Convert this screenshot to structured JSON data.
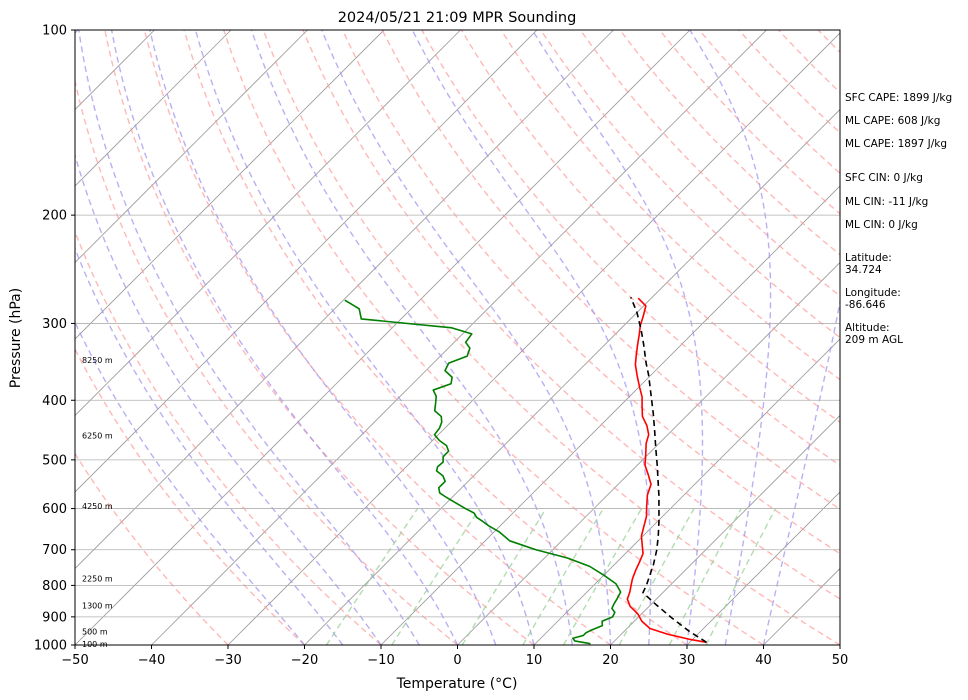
{
  "chart_data": {
    "type": "line",
    "title": "2024/05/21 21:09 MPR Sounding",
    "xlabel": "Temperature (°C)",
    "ylabel": "Pressure (hPa)",
    "xlim": [
      -50,
      50
    ],
    "ylim": [
      1000,
      100
    ],
    "y_scale": "log",
    "x_ticks": [
      -50,
      -40,
      -30,
      -20,
      -10,
      0,
      10,
      20,
      30,
      40,
      50
    ],
    "x_tick_labels": [
      "−50",
      "−40",
      "−30",
      "−20",
      "−10",
      "0",
      "10",
      "20",
      "30",
      "40",
      "50"
    ],
    "y_ticks": [
      100,
      200,
      300,
      400,
      500,
      600,
      700,
      800,
      900,
      1000
    ],
    "y_tick_labels": [
      "100",
      "200",
      "300",
      "400",
      "500",
      "600",
      "700",
      "800",
      "900",
      "1000"
    ],
    "grid": true,
    "skew": "isotherms slanted (skew-T log-P)",
    "background_lines": {
      "dry_adiabats_color": "#ff9a9a",
      "moist_adiabats_color": "#9b8ff0",
      "mixing_ratio_color": "#8fcf8f",
      "isotherm_color": "#999999"
    },
    "series": [
      {
        "color": "#ff0000",
        "points": [
          [
            32.2,
            990
          ],
          [
            29.8,
            980
          ],
          [
            26.0,
            960
          ],
          [
            23.0,
            940
          ],
          [
            21.0,
            915
          ],
          [
            19.5,
            890
          ],
          [
            17.5,
            865
          ],
          [
            16.2,
            842
          ],
          [
            15.6,
            820
          ],
          [
            14.9,
            800
          ],
          [
            14.2,
            780
          ],
          [
            13.5,
            755
          ],
          [
            13.0,
            735
          ],
          [
            12.3,
            710
          ],
          [
            11.2,
            690
          ],
          [
            9.8,
            665
          ],
          [
            8.8,
            640
          ],
          [
            7.9,
            618
          ],
          [
            6.6,
            595
          ],
          [
            5.2,
            570
          ],
          [
            4.3,
            548
          ],
          [
            2.8,
            530
          ],
          [
            1.0,
            510
          ],
          [
            -0.3,
            490
          ],
          [
            -1.7,
            470
          ],
          [
            -2.5,
            455
          ],
          [
            -3.9,
            440
          ],
          [
            -5.7,
            425
          ],
          [
            -7.0,
            410
          ],
          [
            -8.3,
            395
          ],
          [
            -10.0,
            380
          ],
          [
            -11.7,
            365
          ],
          [
            -13.4,
            350
          ],
          [
            -14.6,
            337
          ],
          [
            -15.7,
            325
          ],
          [
            -16.8,
            313
          ],
          [
            -17.9,
            302
          ],
          [
            -18.7,
            292
          ],
          [
            -19.7,
            281
          ],
          [
            -21.7,
            273
          ]
        ]
      },
      {
        "color": "#007f00",
        "points": [
          [
            17.2,
            995
          ],
          [
            16.0,
            990
          ],
          [
            14.8,
            985
          ],
          [
            14.2,
            975
          ],
          [
            15.2,
            965
          ],
          [
            15.2,
            955
          ],
          [
            15.6,
            945
          ],
          [
            16.4,
            930
          ],
          [
            15.8,
            915
          ],
          [
            16.6,
            900
          ],
          [
            16.3,
            885
          ],
          [
            15.4,
            872
          ],
          [
            15.1,
            858
          ],
          [
            14.8,
            840
          ],
          [
            14.4,
            820
          ],
          [
            12.7,
            795
          ],
          [
            10.0,
            770
          ],
          [
            7.0,
            745
          ],
          [
            3.0,
            722
          ],
          [
            -2.2,
            700
          ],
          [
            -6.8,
            677
          ],
          [
            -9.3,
            655
          ],
          [
            -11.5,
            640
          ],
          [
            -12.8,
            630
          ],
          [
            -14.2,
            620
          ],
          [
            -15.1,
            610
          ],
          [
            -16.8,
            600
          ],
          [
            -18.7,
            588
          ],
          [
            -20.5,
            577
          ],
          [
            -22.2,
            566
          ],
          [
            -23.0,
            555
          ],
          [
            -23.0,
            542
          ],
          [
            -24.0,
            531
          ],
          [
            -25.5,
            521
          ],
          [
            -25.9,
            513
          ],
          [
            -25.8,
            504
          ],
          [
            -26.5,
            494
          ],
          [
            -26.5,
            484
          ],
          [
            -27.5,
            474
          ],
          [
            -29.1,
            465
          ],
          [
            -30.5,
            455
          ],
          [
            -30.7,
            444
          ],
          [
            -31.2,
            434
          ],
          [
            -32.0,
            425
          ],
          [
            -33.6,
            416
          ],
          [
            -34.5,
            404
          ],
          [
            -35.3,
            394
          ],
          [
            -36.5,
            385
          ],
          [
            -35.0,
            376
          ],
          [
            -35.7,
            367
          ],
          [
            -37.5,
            358
          ],
          [
            -38.0,
            348
          ],
          [
            -36.5,
            339
          ],
          [
            -37.2,
            329
          ],
          [
            -38.5,
            322
          ],
          [
            -38.8,
            312
          ],
          [
            -42.2,
            305
          ],
          [
            -55.2,
            295
          ],
          [
            -56.8,
            284
          ],
          [
            -59.8,
            275
          ]
        ]
      },
      {
        "color": "#000000",
        "dashed": true,
        "points": [
          [
            32.2,
            990
          ],
          [
            28.5,
            950
          ],
          [
            24.6,
            905
          ],
          [
            20.7,
            860
          ],
          [
            17.4,
            822
          ],
          [
            16.9,
            800
          ],
          [
            15.1,
            740
          ],
          [
            13.6,
            700
          ],
          [
            12.0,
            665
          ],
          [
            10.2,
            630
          ],
          [
            8.5,
            600
          ],
          [
            6.7,
            570
          ],
          [
            4.7,
            540
          ],
          [
            2.6,
            510
          ],
          [
            0.3,
            480
          ],
          [
            -2.1,
            450
          ],
          [
            -4.7,
            420
          ],
          [
            -7.4,
            392
          ],
          [
            -10.3,
            364
          ],
          [
            -12.2,
            348
          ],
          [
            -14.9,
            325
          ],
          [
            -17.1,
            308
          ],
          [
            -20.0,
            288
          ],
          [
            -22.8,
            272
          ]
        ]
      }
    ],
    "altitude_labels": [
      {
        "text": "8250 m",
        "pressure": 345
      },
      {
        "text": "6250 m",
        "pressure": 458
      },
      {
        "text": "4250 m",
        "pressure": 597
      },
      {
        "text": "2250 m",
        "pressure": 782
      },
      {
        "text": "1300 m",
        "pressure": 865
      },
      {
        "text": "500 m",
        "pressure": 955
      },
      {
        "text": "100 m",
        "pressure": 1000
      }
    ]
  },
  "side_panel": {
    "sfc_cape": "SFC CAPE: 1899 J/kg",
    "ml_cape_1": "ML CAPE: 608 J/kg",
    "ml_cape_2": "ML CAPE: 1897 J/kg",
    "sfc_cin": "SFC CIN: 0 J/kg",
    "ml_cin_1": "ML CIN: -11 J/kg",
    "ml_cin_2": "ML CIN: 0 J/kg",
    "latitude": "Latitude:\n34.724",
    "longitude": "Longitude:\n-86.646",
    "altitude": "Altitude:\n209 m AGL"
  }
}
